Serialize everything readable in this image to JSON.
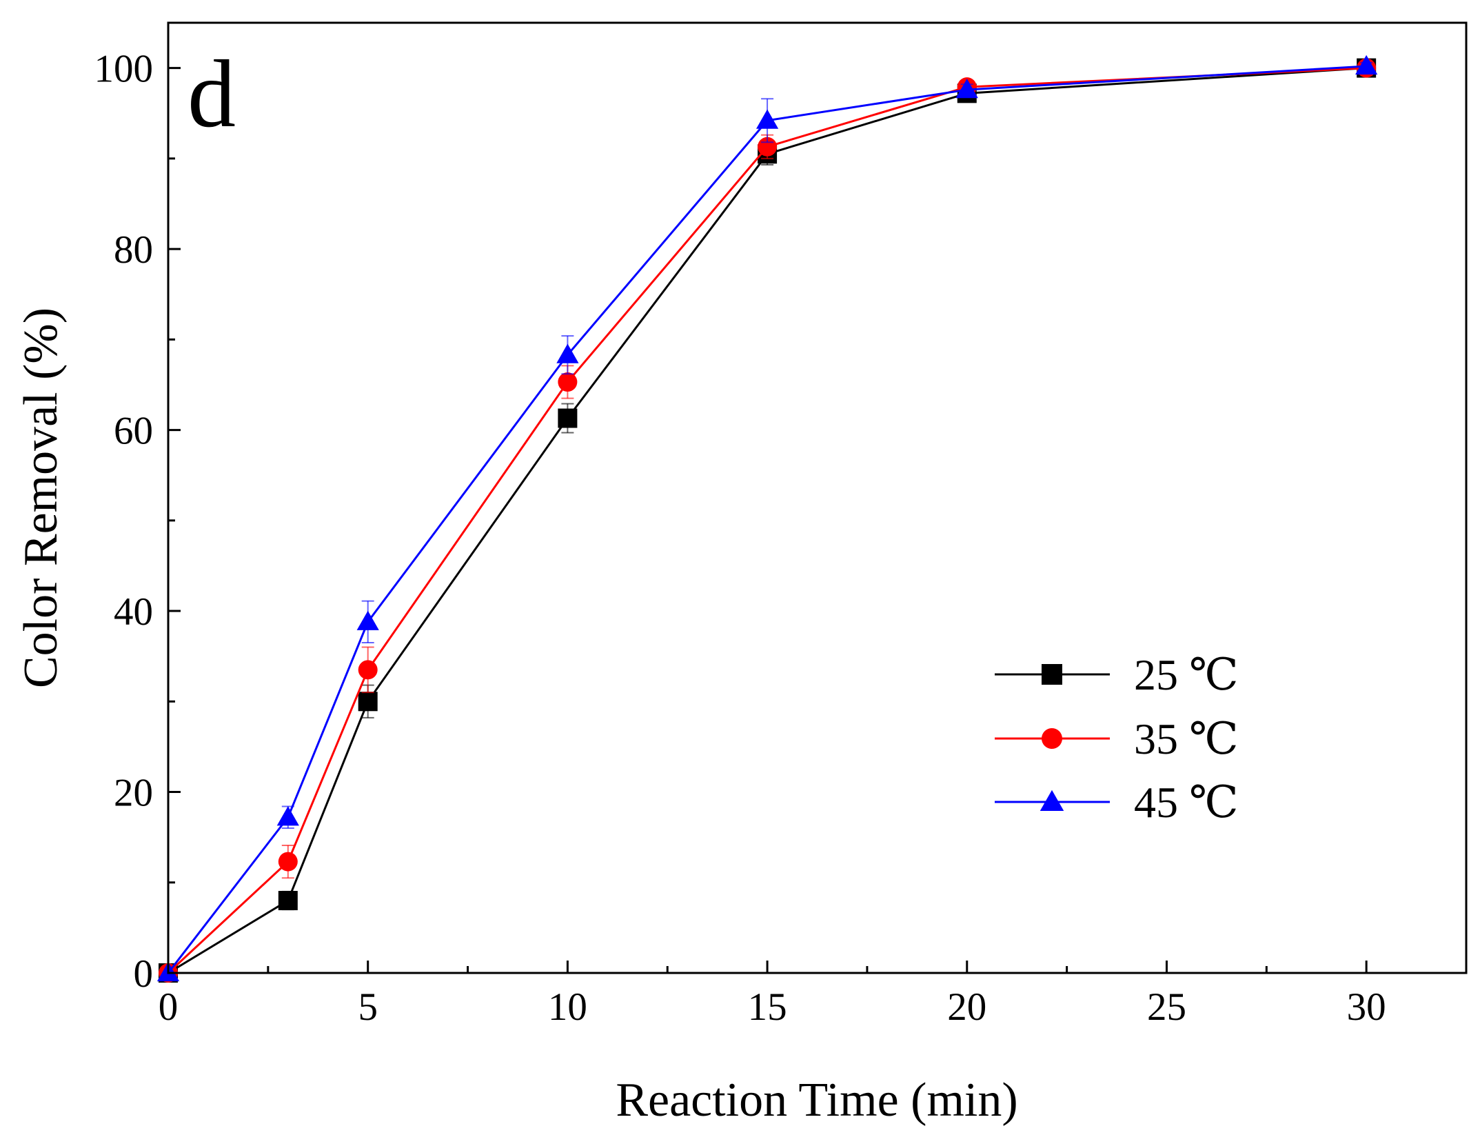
{
  "chart_data": {
    "type": "line",
    "panel_label": "d",
    "xlabel": "Reaction Time (min)",
    "ylabel": "Color Removal (%)",
    "xlim": [
      0,
      32.5
    ],
    "ylim": [
      0,
      105
    ],
    "xticks": [
      0,
      5,
      10,
      15,
      20,
      25,
      30
    ],
    "xtick_labels": [
      "0",
      "5",
      "10",
      "15",
      "20",
      "25",
      "30"
    ],
    "yticks": [
      0,
      20,
      40,
      60,
      80,
      100
    ],
    "ytick_labels": [
      "0",
      "20",
      "40",
      "60",
      "80",
      "100"
    ],
    "grid": false,
    "legend_position": "lower-right",
    "x": [
      0,
      3,
      5,
      10,
      15,
      20,
      30
    ],
    "series": [
      {
        "name": "25 ℃",
        "marker": "square",
        "color": "#000000",
        "values": [
          0,
          8,
          30,
          61.3,
          90.5,
          97.2,
          100
        ],
        "errors": [
          0,
          1.0,
          1.8,
          1.6,
          1.2,
          0.6,
          0.4
        ]
      },
      {
        "name": "35 ℃",
        "marker": "circle",
        "color": "#ff0000",
        "values": [
          0,
          12.3,
          33.5,
          65.3,
          91.3,
          97.9,
          100
        ],
        "errors": [
          0,
          1.8,
          2.5,
          1.8,
          1.3,
          0.6,
          0.4
        ]
      },
      {
        "name": "45 ℃",
        "marker": "triangle",
        "color": "#0000ff",
        "values": [
          0,
          17.2,
          38.8,
          68.3,
          94.2,
          97.6,
          100.2
        ],
        "errors": [
          0,
          1.2,
          2.3,
          2.1,
          2.4,
          0.6,
          0.4
        ]
      }
    ]
  }
}
